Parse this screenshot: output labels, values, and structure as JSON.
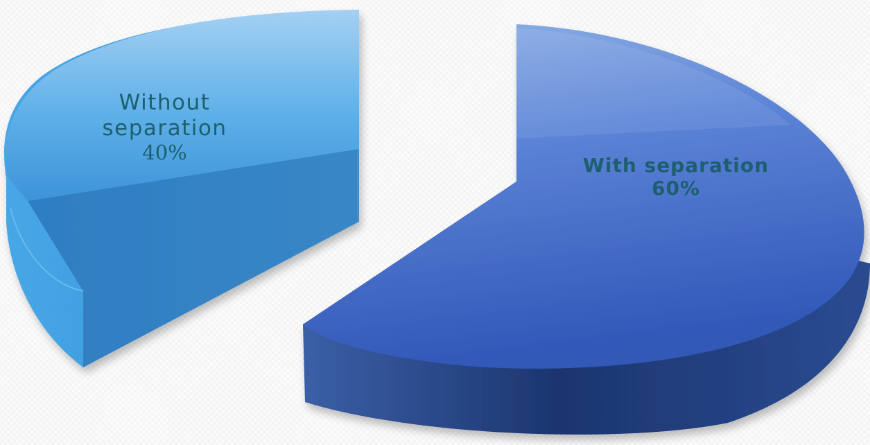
{
  "chart_data": {
    "type": "pie",
    "style": "3d-exploded",
    "slices": [
      {
        "category": "Without separation",
        "value": 40,
        "label_lines": [
          "Without",
          "separation"
        ],
        "value_label": "40%",
        "color": "#5aa9e2"
      },
      {
        "category": "With separation",
        "value": 60,
        "label_lines": [
          "With separation"
        ],
        "value_label": "60%",
        "color": "#3f67c3"
      }
    ],
    "legend": "none"
  }
}
